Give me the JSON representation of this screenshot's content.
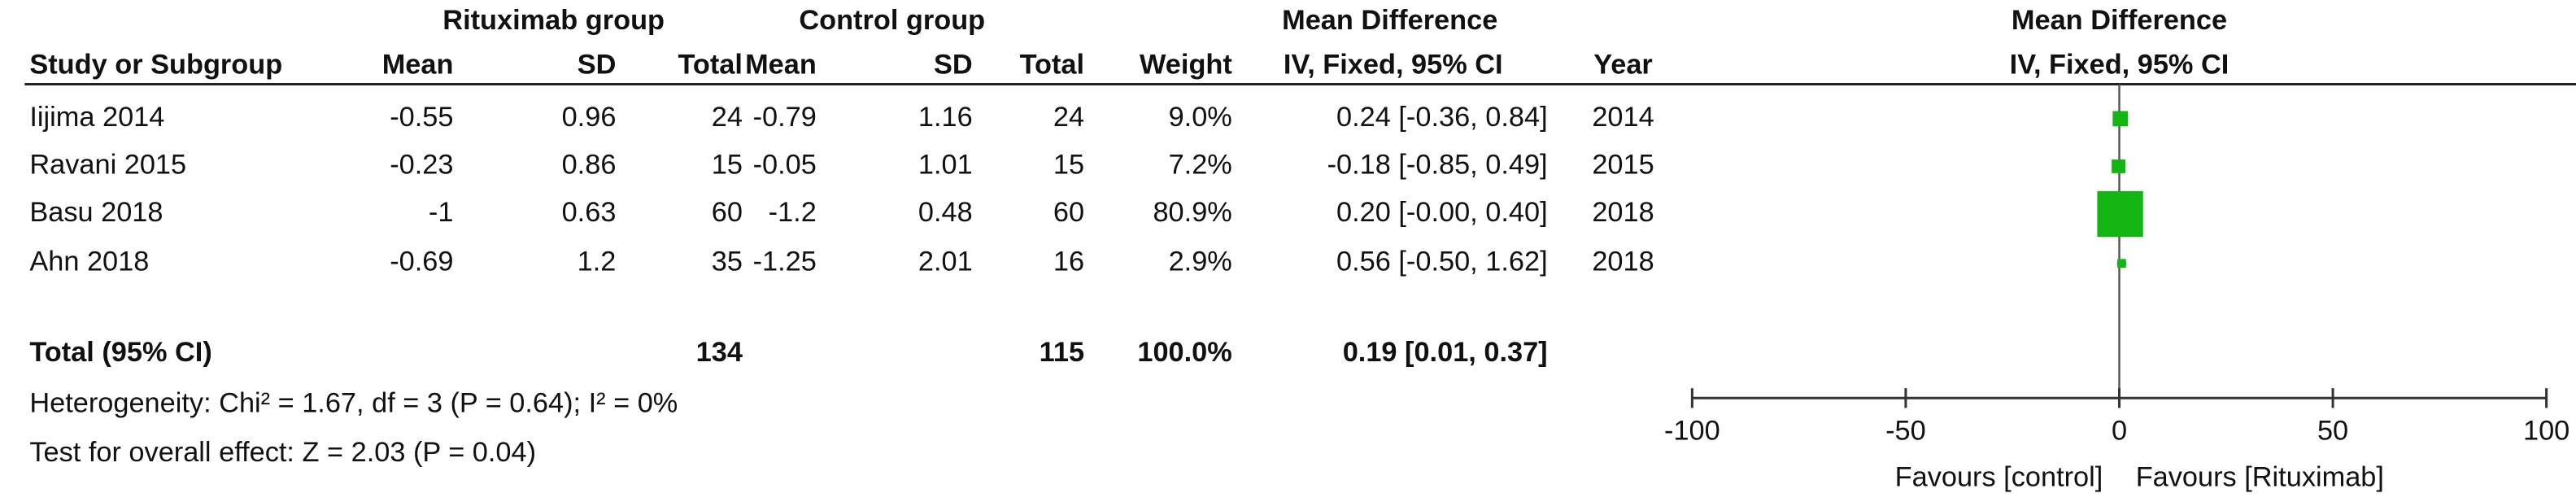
{
  "table": {
    "group_headers": [
      "Rituximab group",
      "Control group",
      "Mean Difference"
    ],
    "columns": [
      "Study or Subgroup",
      "Mean",
      "SD",
      "Total",
      "Mean",
      "SD",
      "Total",
      "Weight",
      "IV, Fixed, 95% CI",
      "Year"
    ],
    "rows": [
      [
        "Iijima 2014",
        "-0.55",
        "0.96",
        "24",
        "-0.79",
        "1.16",
        "24",
        "9.0%",
        "0.24 [-0.36, 0.84]",
        "2014"
      ],
      [
        "Ravani 2015",
        "-0.23",
        "0.86",
        "15",
        "-0.05",
        "1.01",
        "15",
        "7.2%",
        "-0.18 [-0.85, 0.49]",
        "2015"
      ],
      [
        "Basu 2018",
        "-1",
        "0.63",
        "60",
        "-1.2",
        "0.48",
        "60",
        "80.9%",
        "0.20 [-0.00, 0.40]",
        "2018"
      ],
      [
        "Ahn 2018",
        "-0.69",
        "1.2",
        "35",
        "-1.25",
        "2.01",
        "16",
        "2.9%",
        "0.56 [-0.50, 1.62]",
        "2018"
      ]
    ],
    "total": [
      "Total (95% CI)",
      "134",
      "115",
      "100.0%",
      "0.19 [0.01, 0.37]"
    ],
    "heterogeneity": "Heterogeneity: Chi² = 1.67, df = 3 (P = 0.64); I² = 0%",
    "overall": "Test for overall effect: Z = 2.03 (P = 0.04)"
  },
  "chart_data": {
    "type": "forest",
    "title": "Mean Difference",
    "subtitle": "IV, Fixed, 95% CI",
    "estimates": [
      0.24,
      -0.18,
      0.2,
      0.56
    ],
    "lower": [
      -0.36,
      -0.85,
      -0.0,
      -0.5
    ],
    "upper": [
      0.84,
      0.49,
      0.4,
      1.62
    ],
    "weights": [
      9.0,
      7.2,
      80.9,
      2.9
    ],
    "xlim": [
      -100,
      100
    ],
    "xticks": [
      -100,
      -50,
      0,
      50,
      100
    ],
    "x_labels": [
      "Favours [control]",
      "Favours [Rituximab]"
    ],
    "color": "#12b512"
  }
}
